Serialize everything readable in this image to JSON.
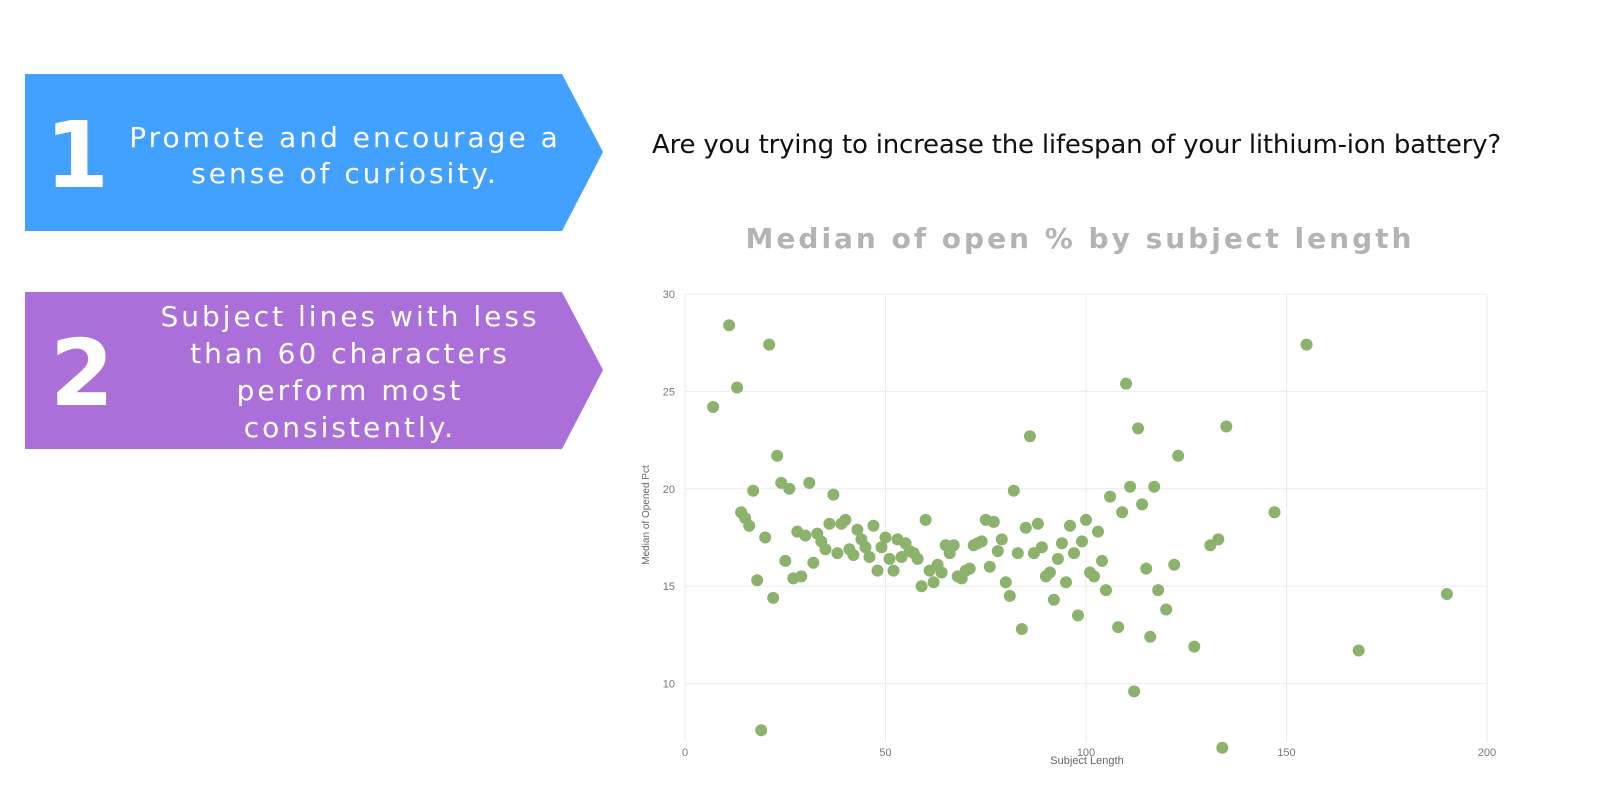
{
  "banners": [
    {
      "number": "1",
      "text": "Promote and encourage a sense of curiosity.",
      "color": "#42a1ff"
    },
    {
      "number": "2",
      "text": "Subject lines with less than 60 characters perform most consistently.",
      "color": "#ab6fd9"
    }
  ],
  "question": "Are you trying to increase the lifespan of your lithium-ion battery?",
  "chart_title": "Median of open % by subject length",
  "chart_data": {
    "type": "scatter",
    "title": "Median of open % by subject length",
    "xlabel": "Subject Length",
    "ylabel": "Median of Opened Pct",
    "xlim": [
      0,
      200
    ],
    "ylim": [
      7,
      30
    ],
    "xticks": [
      0,
      50,
      100,
      150,
      200
    ],
    "yticks": [
      10,
      15,
      20,
      25,
      30
    ],
    "grid": true,
    "point_color": "#8db26e",
    "points": [
      [
        7,
        24.2
      ],
      [
        11,
        28.4
      ],
      [
        13,
        25.2
      ],
      [
        14,
        18.8
      ],
      [
        15,
        18.5
      ],
      [
        16,
        18.1
      ],
      [
        17,
        19.9
      ],
      [
        18,
        15.3
      ],
      [
        19,
        7.6
      ],
      [
        20,
        17.5
      ],
      [
        21,
        27.4
      ],
      [
        22,
        14.4
      ],
      [
        23,
        21.7
      ],
      [
        24,
        20.3
      ],
      [
        25,
        16.3
      ],
      [
        26,
        20.0
      ],
      [
        27,
        15.4
      ],
      [
        28,
        17.8
      ],
      [
        29,
        15.5
      ],
      [
        30,
        17.6
      ],
      [
        31,
        20.3
      ],
      [
        32,
        16.2
      ],
      [
        33,
        17.7
      ],
      [
        34,
        17.3
      ],
      [
        35,
        16.9
      ],
      [
        36,
        18.2
      ],
      [
        37,
        19.7
      ],
      [
        38,
        16.7
      ],
      [
        39,
        18.2
      ],
      [
        40,
        18.4
      ],
      [
        41,
        16.9
      ],
      [
        42,
        16.6
      ],
      [
        43,
        17.9
      ],
      [
        44,
        17.4
      ],
      [
        45,
        17.0
      ],
      [
        46,
        16.5
      ],
      [
        47,
        18.1
      ],
      [
        48,
        15.8
      ],
      [
        49,
        17.0
      ],
      [
        50,
        17.5
      ],
      [
        51,
        16.4
      ],
      [
        52,
        15.8
      ],
      [
        53,
        17.4
      ],
      [
        54,
        16.5
      ],
      [
        55,
        17.2
      ],
      [
        56,
        16.8
      ],
      [
        57,
        16.7
      ],
      [
        58,
        16.4
      ],
      [
        59,
        15.0
      ],
      [
        60,
        18.4
      ],
      [
        61,
        15.8
      ],
      [
        62,
        15.2
      ],
      [
        63,
        16.1
      ],
      [
        64,
        15.7
      ],
      [
        65,
        17.1
      ],
      [
        66,
        16.7
      ],
      [
        67,
        17.1
      ],
      [
        68,
        15.5
      ],
      [
        69,
        15.4
      ],
      [
        70,
        15.8
      ],
      [
        71,
        15.9
      ],
      [
        72,
        17.1
      ],
      [
        73,
        17.2
      ],
      [
        74,
        17.3
      ],
      [
        75,
        18.4
      ],
      [
        76,
        16.0
      ],
      [
        77,
        18.3
      ],
      [
        78,
        16.8
      ],
      [
        79,
        17.4
      ],
      [
        80,
        15.2
      ],
      [
        81,
        14.5
      ],
      [
        82,
        19.9
      ],
      [
        83,
        16.7
      ],
      [
        84,
        12.8
      ],
      [
        85,
        18.0
      ],
      [
        86,
        22.7
      ],
      [
        87,
        16.7
      ],
      [
        88,
        18.2
      ],
      [
        89,
        17.0
      ],
      [
        90,
        15.5
      ],
      [
        91,
        15.7
      ],
      [
        92,
        14.3
      ],
      [
        93,
        16.4
      ],
      [
        94,
        17.2
      ],
      [
        95,
        15.2
      ],
      [
        96,
        18.1
      ],
      [
        97,
        16.7
      ],
      [
        98,
        13.5
      ],
      [
        99,
        17.3
      ],
      [
        100,
        18.4
      ],
      [
        101,
        15.7
      ],
      [
        102,
        15.5
      ],
      [
        103,
        17.8
      ],
      [
        104,
        16.3
      ],
      [
        105,
        14.8
      ],
      [
        106,
        19.6
      ],
      [
        108,
        12.9
      ],
      [
        109,
        18.8
      ],
      [
        110,
        25.4
      ],
      [
        111,
        20.1
      ],
      [
        112,
        9.6
      ],
      [
        113,
        23.1
      ],
      [
        114,
        19.2
      ],
      [
        115,
        15.9
      ],
      [
        116,
        12.4
      ],
      [
        117,
        20.1
      ],
      [
        118,
        14.8
      ],
      [
        120,
        13.8
      ],
      [
        122,
        16.1
      ],
      [
        123,
        21.7
      ],
      [
        127,
        11.9
      ],
      [
        131,
        17.1
      ],
      [
        133,
        17.4
      ],
      [
        134,
        6.7
      ],
      [
        135,
        23.2
      ],
      [
        147,
        18.8
      ],
      [
        155,
        27.4
      ],
      [
        168,
        11.7
      ],
      [
        190,
        14.6
      ]
    ]
  }
}
